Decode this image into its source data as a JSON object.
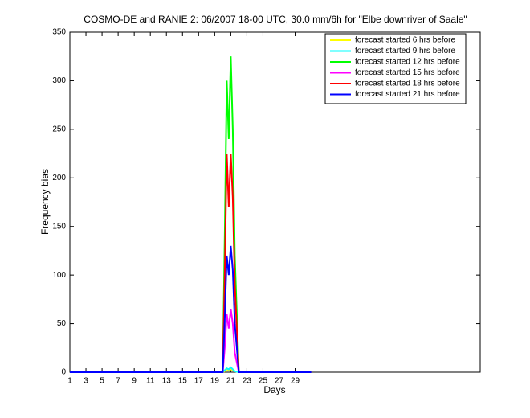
{
  "chart_data": {
    "type": "line",
    "title": "COSMO-DE and RANIE 2: 06/2007 18-00 UTC, 30.0 mm/6h for \"Elbe downriver of Saale\"",
    "x_label": "Days",
    "y_label": "Frequency bias",
    "x": [
      1,
      20,
      20.25,
      20.5,
      20.75,
      21,
      21.25,
      21.5,
      22,
      31
    ],
    "series": [
      {
        "name": "forecast started 6 hrs before",
        "color": "#ffff00",
        "values": [
          0,
          0,
          1,
          3,
          2,
          3,
          2,
          1,
          0,
          0
        ]
      },
      {
        "name": "forecast started 9 hrs before",
        "color": "#00ffff",
        "values": [
          0,
          0,
          2,
          4,
          3,
          5,
          3,
          1,
          0,
          0
        ]
      },
      {
        "name": "forecast started 12 hrs before",
        "color": "#00ff00",
        "values": [
          0,
          0,
          140,
          300,
          240,
          325,
          250,
          120,
          0,
          0
        ]
      },
      {
        "name": "forecast started 15 hrs before",
        "color": "#ff00ff",
        "values": [
          0,
          0,
          25,
          60,
          45,
          65,
          50,
          20,
          0,
          0
        ]
      },
      {
        "name": "forecast started 18 hrs before",
        "color": "#ff0000",
        "values": [
          0,
          0,
          100,
          225,
          170,
          225,
          180,
          90,
          0,
          0
        ]
      },
      {
        "name": "forecast started 21 hrs before",
        "color": "#0000ff",
        "values": [
          0,
          0,
          55,
          120,
          100,
          130,
          105,
          50,
          0,
          0
        ]
      }
    ],
    "xlim": [
      1,
      52
    ],
    "ylim": [
      0,
      350
    ],
    "xticks": [
      1,
      3,
      5,
      7,
      9,
      11,
      13,
      15,
      17,
      19,
      21,
      23,
      25,
      27,
      29
    ],
    "yticks": [
      0,
      50,
      100,
      150,
      200,
      250,
      300,
      350
    ],
    "legend": "upper right"
  }
}
